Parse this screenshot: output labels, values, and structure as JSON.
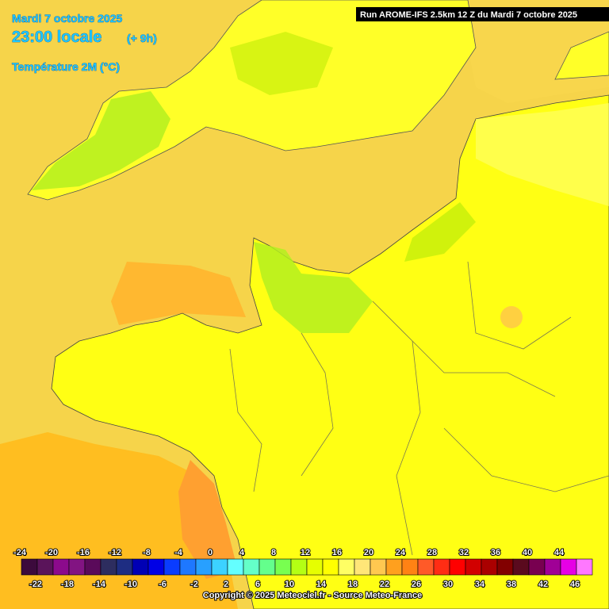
{
  "header": {
    "date": "Mardi 7 octobre 2025",
    "time": "23:00 locale",
    "lead": "(+ 9h)",
    "variable": "Température 2M (°C)"
  },
  "run": "Run AROME-IFS 2.5km 12 Z du Mardi 7 octobre 2025",
  "legend": {
    "ticks": [
      -24,
      -22,
      -20,
      -18,
      -16,
      -14,
      -12,
      -10,
      -8,
      -6,
      -4,
      -2,
      0,
      2,
      4,
      6,
      8,
      10,
      12,
      14,
      16,
      18,
      20,
      22,
      24,
      26,
      28,
      30,
      32,
      34,
      36,
      38,
      40,
      42,
      44,
      46
    ],
    "colors": [
      "#3c0a3c",
      "#5a145a",
      "#8c0a8c",
      "#821482",
      "#5a0a5a",
      "#2d2d5f",
      "#1e2d82",
      "#0000b4",
      "#0000e6",
      "#0a3cff",
      "#1e78ff",
      "#28a0ff",
      "#3cd2ff",
      "#64ffff",
      "#64ffc8",
      "#64ff8c",
      "#78ff50",
      "#b4ff14",
      "#e6ff00",
      "#ffff00",
      "#ffff64",
      "#ffe678",
      "#ffc850",
      "#ffa01e",
      "#ff8214",
      "#ff5a28",
      "#ff2d14",
      "#ff0000",
      "#d20000",
      "#aa0000",
      "#820000",
      "#5a0a1e",
      "#780050",
      "#a00096",
      "#e600e6",
      "#ff78ff"
    ]
  },
  "copyright": "Copyright © 2025 Meteociel.fr - Source Meteo-France"
}
